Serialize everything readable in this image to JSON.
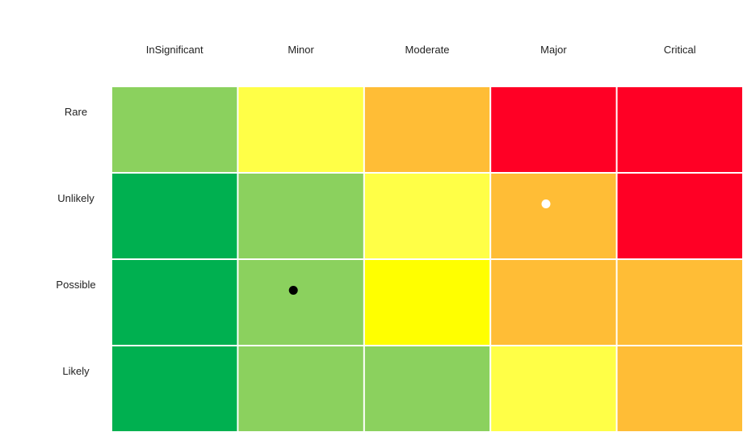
{
  "chart_data": {
    "type": "heatmap",
    "x_categories": [
      "InSignificant",
      "Minor",
      "Moderate",
      "Major",
      "Critical"
    ],
    "y_categories": [
      "Rare",
      "Unlikely",
      "Possible",
      "Likely"
    ],
    "risk_levels": [
      [
        2,
        3,
        4,
        5,
        5
      ],
      [
        1,
        2,
        3,
        4,
        5
      ],
      [
        1,
        2,
        3,
        4,
        4
      ],
      [
        1,
        2,
        2,
        3,
        4
      ]
    ],
    "level_colors": {
      "1": "#00b050",
      "2": "#8bd15e",
      "3": "#ffff47",
      "4": "#ffbd36",
      "5": "#ff0025"
    },
    "cell_overrides": [
      {
        "x": "Moderate",
        "y": "Possible",
        "color": "#ffff00"
      }
    ],
    "markers": [
      {
        "x": "Major",
        "y": "Unlikely",
        "color": "#ffffff"
      },
      {
        "x": "Minor",
        "y": "Possible",
        "color": "#000000"
      }
    ],
    "grid_line_color": "#ffffff",
    "legend": "none"
  }
}
